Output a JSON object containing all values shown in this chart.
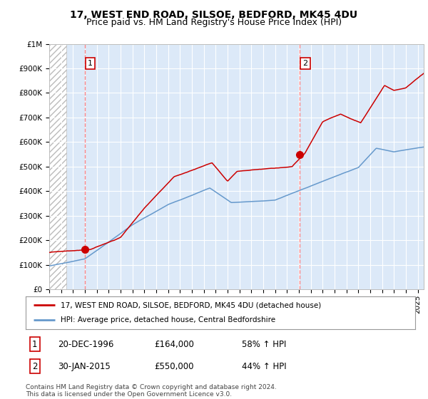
{
  "title": "17, WEST END ROAD, SILSOE, BEDFORD, MK45 4DU",
  "subtitle": "Price paid vs. HM Land Registry's House Price Index (HPI)",
  "red_label": "17, WEST END ROAD, SILSOE, BEDFORD, MK45 4DU (detached house)",
  "blue_label": "HPI: Average price, detached house, Central Bedfordshire",
  "footnote": "Contains HM Land Registry data © Crown copyright and database right 2024.\nThis data is licensed under the Open Government Licence v3.0.",
  "sale1_date": "20-DEC-1996",
  "sale1_price": "£164,000",
  "sale1_hpi": "58% ↑ HPI",
  "sale2_date": "30-JAN-2015",
  "sale2_price": "£550,000",
  "sale2_hpi": "44% ↑ HPI",
  "plot_bg": "#dce9f8",
  "red_color": "#cc0000",
  "blue_color": "#6699cc",
  "dashed_red": "#ff8888",
  "ylim_max": 1000000,
  "xlim_start": 1994.0,
  "xlim_end": 2025.5,
  "sale1_year": 1996.97,
  "sale2_year": 2015.08,
  "sale1_value": 164000,
  "sale2_value": 550000,
  "title_fontsize": 10,
  "subtitle_fontsize": 9,
  "axis_fontsize": 8,
  "tick_fontsize": 7.5
}
